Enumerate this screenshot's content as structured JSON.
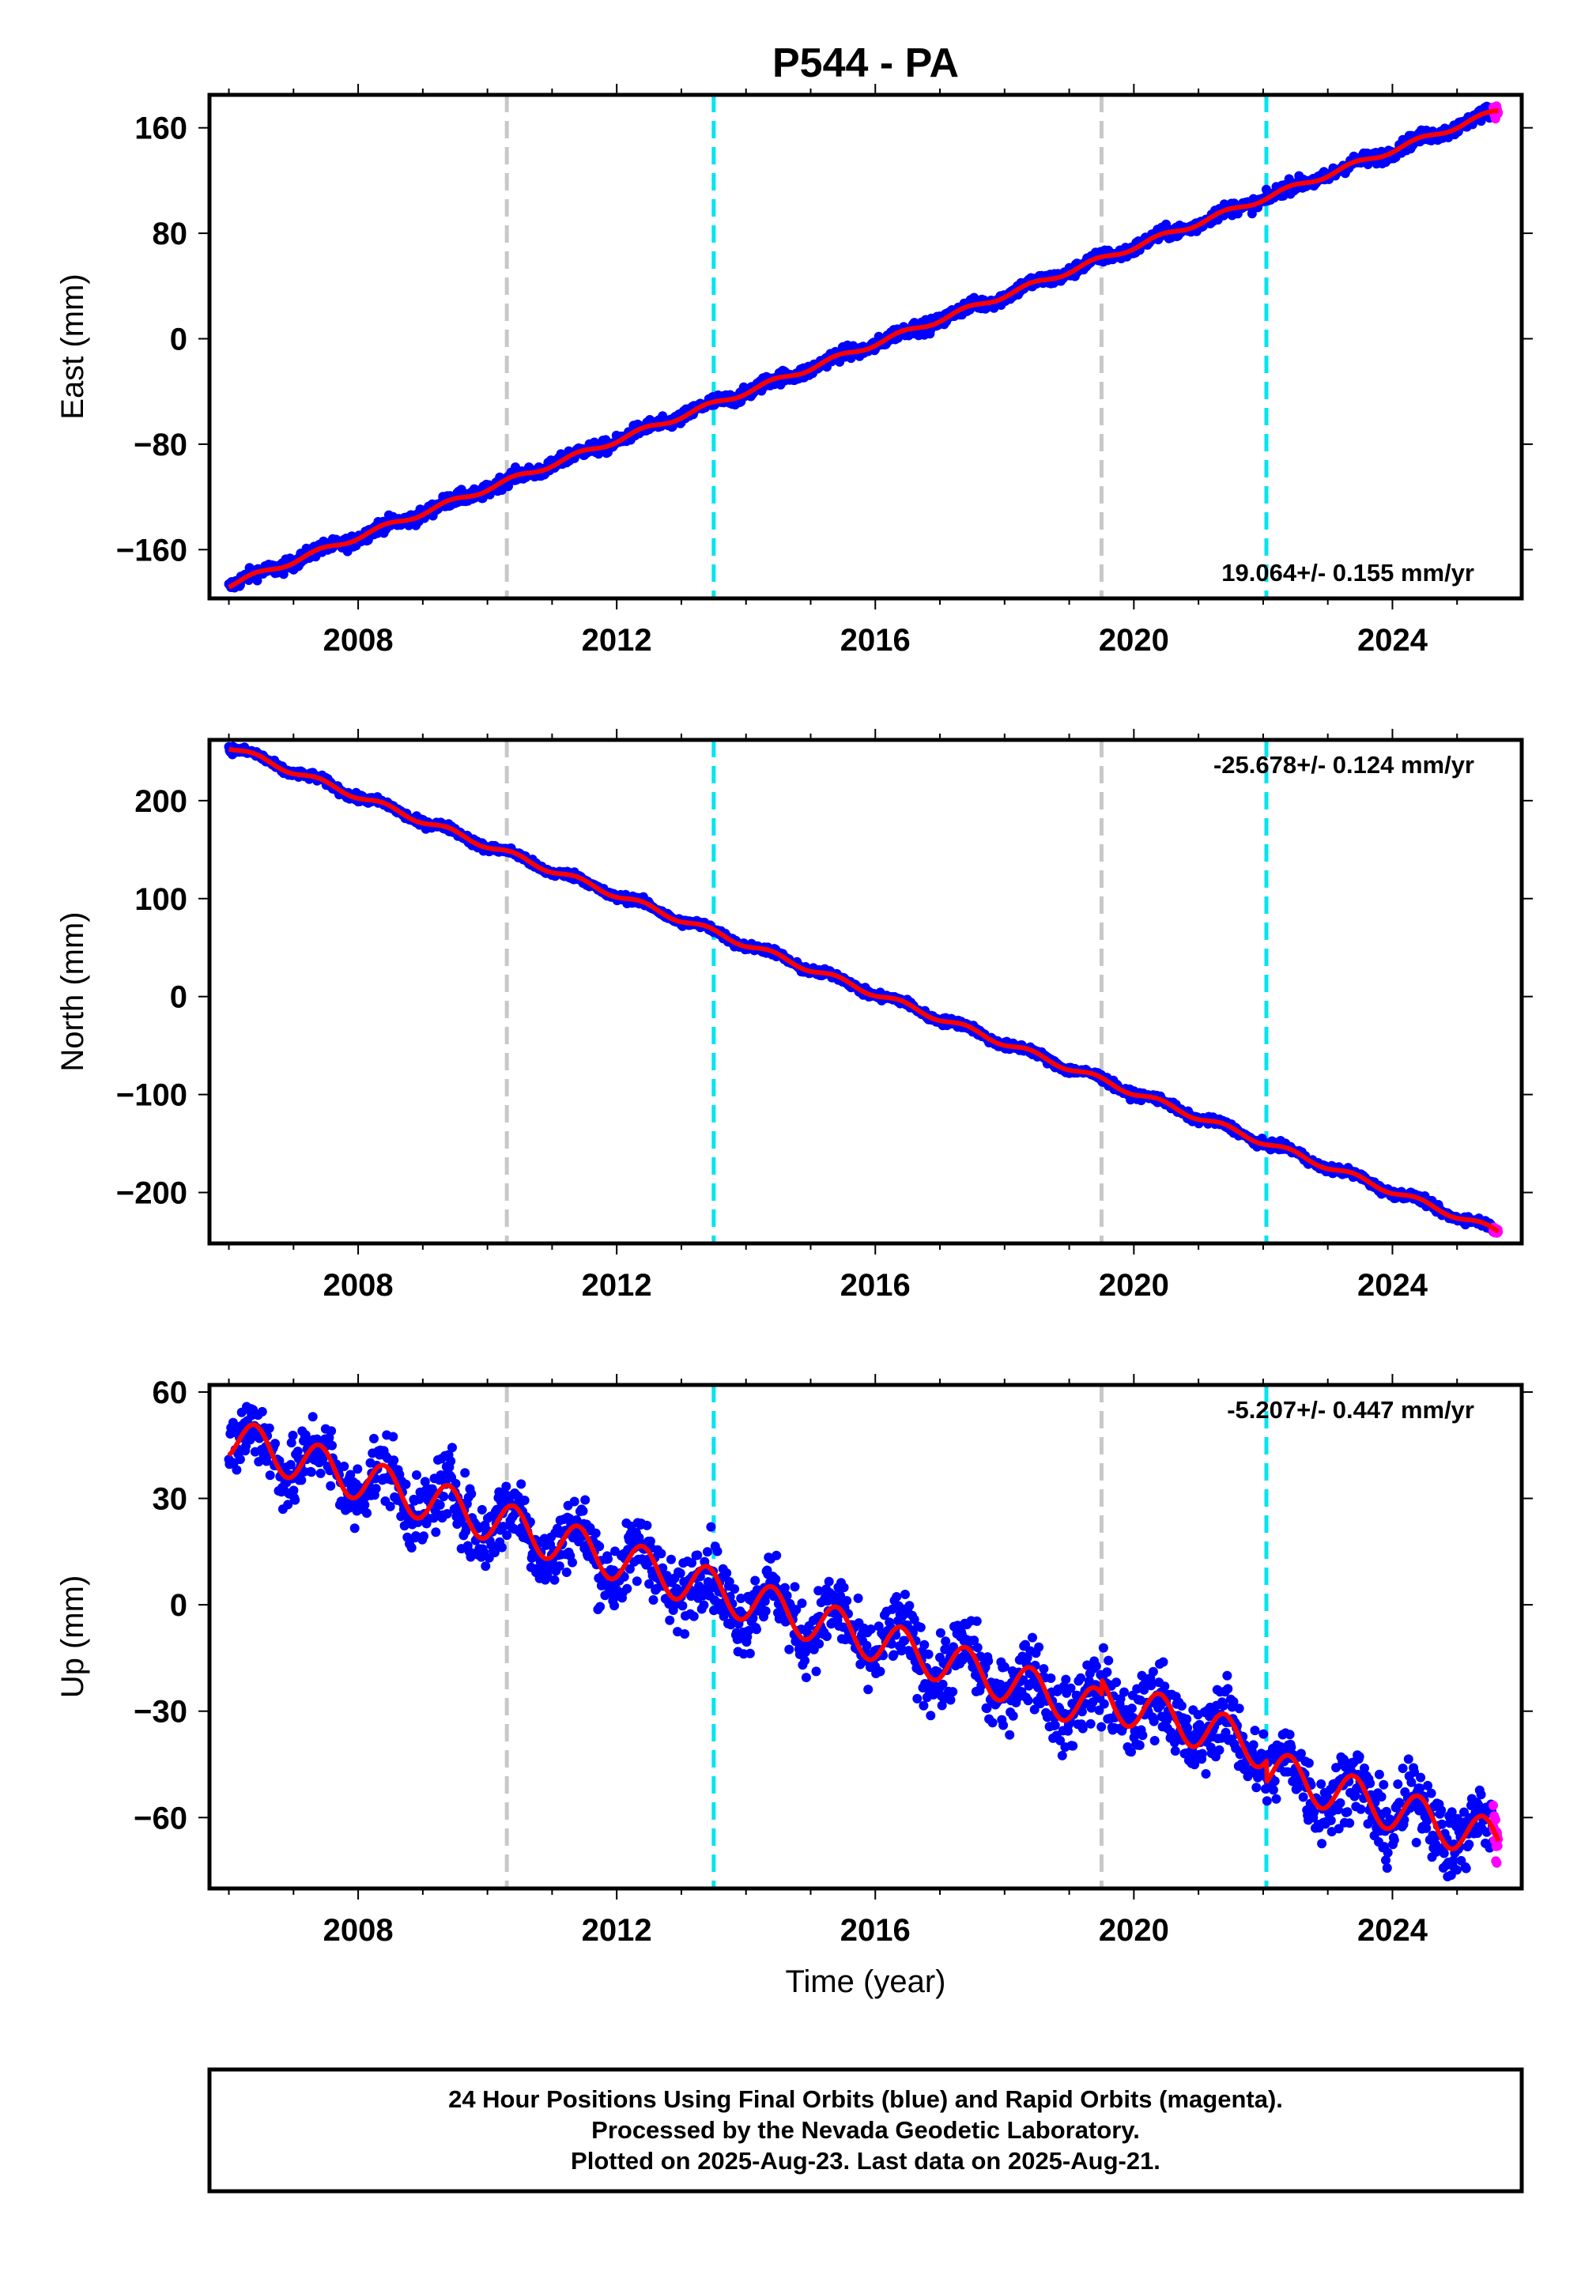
{
  "title": "P544 - PA",
  "x_axis_label": "Time (year)",
  "footer": {
    "line1": "24 Hour Positions Using Final Orbits (blue) and Rapid Orbits (magenta).",
    "line2": "Processed by the Nevada Geodetic Laboratory.",
    "line3": "Plotted on 2025-Aug-23. Last data on 2025-Aug-21."
  },
  "colors": {
    "final_orbits": "#0000ff",
    "rapid_orbits": "#ff00ff",
    "model_fit": "#ff0000",
    "equipment_change_line": "#c8c8c8",
    "event_line": "#00e5ee"
  },
  "chart_data": [
    {
      "type": "scatter",
      "component": "east",
      "ylabel": "East (mm)",
      "xlim": [
        2005.7,
        2026.0
      ],
      "ylim": [
        -197,
        185
      ],
      "xticks": [
        2008,
        2012,
        2016,
        2020,
        2024
      ],
      "yticks": [
        -160,
        -80,
        0,
        80,
        160
      ],
      "rate_label": "19.064+/- 0.155 mm/yr",
      "rate_mm_per_yr": 19.064,
      "data_start": 2006.0,
      "data_end": 2025.64,
      "value_at_start": -187,
      "value_at_end": 173,
      "seasonal_amplitude_mm": 2.0,
      "scatter_mm": 2.5,
      "offsets": [],
      "series": [
        {
          "name": "Final Orbits",
          "color": "#0000ff"
        },
        {
          "name": "Rapid Orbits",
          "color": "#ff00ff"
        },
        {
          "name": "Model",
          "color": "#ff0000"
        }
      ],
      "vlines": [
        {
          "x": 2010.3,
          "style": "gray-dashed"
        },
        {
          "x": 2013.5,
          "style": "cyan-dashed"
        },
        {
          "x": 2019.5,
          "style": "gray-dashed"
        },
        {
          "x": 2022.05,
          "style": "cyan-dashed"
        }
      ]
    },
    {
      "type": "scatter",
      "component": "north",
      "ylabel": "North (mm)",
      "xlim": [
        2005.7,
        2026.0
      ],
      "ylim": [
        -252,
        262
      ],
      "xticks": [
        2008,
        2012,
        2016,
        2020,
        2024
      ],
      "yticks": [
        -200,
        -100,
        0,
        100,
        200
      ],
      "rate_label": "-25.678+/- 0.124 mm/yr",
      "rate_mm_per_yr": -25.678,
      "data_start": 2006.0,
      "data_end": 2025.64,
      "value_at_start": 255,
      "value_at_end": -240,
      "seasonal_amplitude_mm": 3.0,
      "scatter_mm": 2.0,
      "offsets": [],
      "series": [
        {
          "name": "Final Orbits",
          "color": "#0000ff"
        },
        {
          "name": "Rapid Orbits",
          "color": "#ff00ff"
        },
        {
          "name": "Model",
          "color": "#ff0000"
        }
      ],
      "vlines": [
        {
          "x": 2010.3,
          "style": "gray-dashed"
        },
        {
          "x": 2013.5,
          "style": "cyan-dashed"
        },
        {
          "x": 2019.5,
          "style": "gray-dashed"
        },
        {
          "x": 2022.05,
          "style": "cyan-dashed"
        }
      ]
    },
    {
      "type": "scatter",
      "component": "up",
      "ylabel": "Up (mm)",
      "xlim": [
        2005.7,
        2026.0
      ],
      "ylim": [
        -80,
        62
      ],
      "xticks": [
        2008,
        2012,
        2016,
        2020,
        2024
      ],
      "yticks": [
        -60,
        -30,
        0,
        30,
        60
      ],
      "rate_label": "-5.207+/- 0.447 mm/yr",
      "rate_mm_per_yr": -5.207,
      "data_start": 2006.0,
      "data_end": 2025.64,
      "value_at_start": 47,
      "value_at_end": -65,
      "seasonal_amplitude_mm": 6.0,
      "scatter_mm": 5.0,
      "offsets": [
        {
          "x": 2019.5,
          "mm": 4
        },
        {
          "x": 2022.05,
          "mm": -6
        }
      ],
      "series": [
        {
          "name": "Final Orbits",
          "color": "#0000ff"
        },
        {
          "name": "Rapid Orbits",
          "color": "#ff00ff"
        },
        {
          "name": "Model",
          "color": "#ff0000"
        }
      ],
      "vlines": [
        {
          "x": 2010.3,
          "style": "gray-dashed"
        },
        {
          "x": 2013.5,
          "style": "cyan-dashed"
        },
        {
          "x": 2019.5,
          "style": "gray-dashed"
        },
        {
          "x": 2022.05,
          "style": "cyan-dashed"
        }
      ]
    }
  ]
}
